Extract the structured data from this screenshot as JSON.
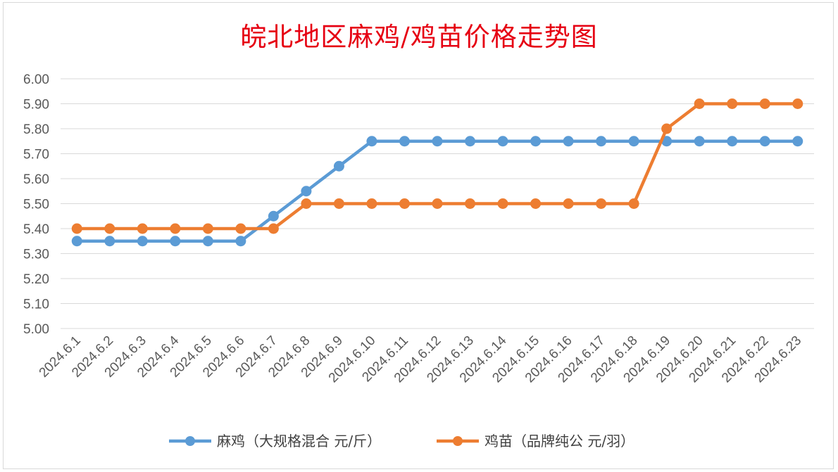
{
  "chart_data": {
    "type": "line",
    "title": "皖北地区麻鸡/鸡苗价格走势图",
    "categories": [
      "2024.6.1",
      "2024.6.2",
      "2024.6.3",
      "2024.6.4",
      "2024.6.5",
      "2024.6.6",
      "2024.6.7",
      "2024.6.8",
      "2024.6.9",
      "2024.6.10",
      "2024.6.11",
      "2024.6.12",
      "2024.6.13",
      "2024.6.14",
      "2024.6.15",
      "2024.6.16",
      "2024.6.17",
      "2024.6.18",
      "2024.6.19",
      "2024.6.20",
      "2024.6.21",
      "2024.6.22",
      "2024.6.23"
    ],
    "series": [
      {
        "name": "麻鸡（大规格混合 元/斤）",
        "color": "#5b9bd5",
        "values": [
          5.35,
          5.35,
          5.35,
          5.35,
          5.35,
          5.35,
          5.45,
          5.55,
          5.65,
          5.75,
          5.75,
          5.75,
          5.75,
          5.75,
          5.75,
          5.75,
          5.75,
          5.75,
          5.75,
          5.75,
          5.75,
          5.75,
          5.75
        ]
      },
      {
        "name": "鸡苗（品牌纯公 元/羽）",
        "color": "#ed7d31",
        "values": [
          5.4,
          5.4,
          5.4,
          5.4,
          5.4,
          5.4,
          5.4,
          5.5,
          5.5,
          5.5,
          5.5,
          5.5,
          5.5,
          5.5,
          5.5,
          5.5,
          5.5,
          5.5,
          5.8,
          5.9,
          5.9,
          5.9,
          5.9
        ]
      }
    ],
    "ylim": [
      5.0,
      6.0
    ],
    "yticks": [
      "5.00",
      "5.10",
      "5.20",
      "5.30",
      "5.40",
      "5.50",
      "5.60",
      "5.70",
      "5.80",
      "5.90",
      "6.00"
    ],
    "xlabel": "",
    "ylabel": "",
    "grid": true,
    "legend_position": "bottom"
  }
}
